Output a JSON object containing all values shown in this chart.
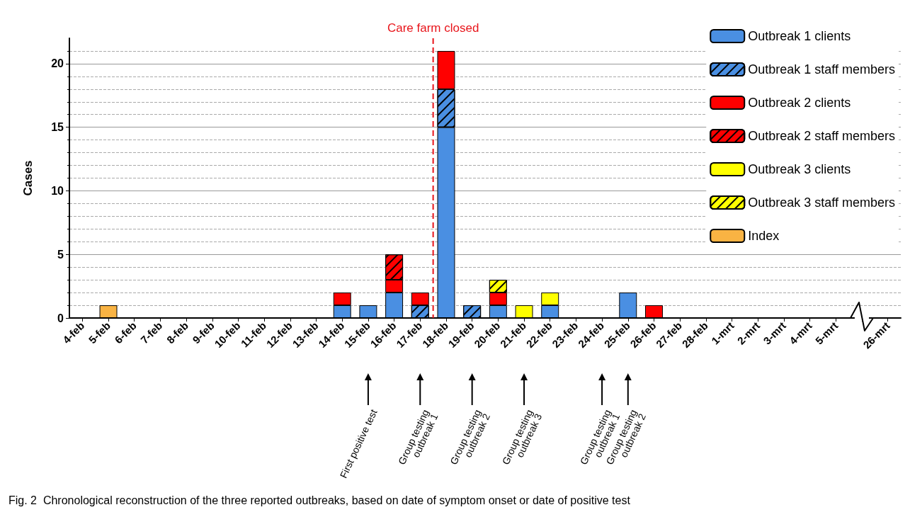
{
  "chart_data": {
    "type": "bar",
    "stacked": true,
    "ylabel": "Cases",
    "categories": [
      "4-feb",
      "5-feb",
      "6-feb",
      "7-feb",
      "8-feb",
      "9-feb",
      "10-feb",
      "11-feb",
      "12-feb",
      "13-feb",
      "14-feb",
      "15-feb",
      "16-feb",
      "17-feb",
      "18-feb",
      "19-feb",
      "20-feb",
      "21-feb",
      "22-feb",
      "23-feb",
      "24-feb",
      "25-feb",
      "26-feb",
      "27-feb",
      "28-feb",
      "1-mrt",
      "2-mrt",
      "3-mrt",
      "4-mrt",
      "5-mrt",
      null,
      "26-mrt"
    ],
    "series": [
      {
        "name": "Outbreak 1 clients",
        "color": "#4a8fe2",
        "values": [
          null,
          null,
          null,
          null,
          null,
          null,
          null,
          null,
          null,
          null,
          1,
          1,
          2,
          null,
          15,
          null,
          1,
          null,
          1,
          null,
          null,
          2,
          null,
          null,
          null,
          null,
          null,
          null,
          null,
          null,
          null,
          null
        ]
      },
      {
        "name": "Outbreak 1 staff members",
        "color": "#4a8fe2",
        "values": [
          null,
          null,
          null,
          null,
          null,
          null,
          null,
          null,
          null,
          null,
          null,
          null,
          null,
          1,
          3,
          1,
          null,
          null,
          null,
          null,
          null,
          null,
          null,
          null,
          null,
          null,
          null,
          null,
          null,
          null,
          null,
          null
        ]
      },
      {
        "name": "Outbreak 2 clients",
        "color": "#ff0000",
        "values": [
          null,
          null,
          null,
          null,
          null,
          null,
          null,
          null,
          null,
          null,
          1,
          null,
          1,
          1,
          3,
          null,
          1,
          null,
          null,
          null,
          null,
          null,
          1,
          null,
          null,
          null,
          null,
          null,
          null,
          null,
          null,
          null
        ]
      },
      {
        "name": "Outbreak 2 staff members",
        "color": "#ff0000",
        "values": [
          null,
          null,
          null,
          null,
          null,
          null,
          null,
          null,
          null,
          null,
          null,
          null,
          2,
          null,
          null,
          null,
          null,
          null,
          null,
          null,
          null,
          null,
          null,
          null,
          null,
          null,
          null,
          null,
          null,
          null,
          null,
          null
        ]
      },
      {
        "name": "Outbreak 3 clients",
        "color": "#ffff00",
        "values": [
          null,
          null,
          null,
          null,
          null,
          null,
          null,
          null,
          null,
          null,
          null,
          null,
          null,
          null,
          null,
          null,
          null,
          1,
          1,
          null,
          null,
          null,
          null,
          null,
          null,
          null,
          null,
          null,
          null,
          null,
          null,
          null
        ]
      },
      {
        "name": "Outbreak 3 staff members",
        "color": "#ffff00",
        "values": [
          null,
          null,
          null,
          null,
          null,
          null,
          null,
          null,
          null,
          null,
          null,
          null,
          null,
          null,
          null,
          null,
          1,
          null,
          null,
          null,
          null,
          null,
          null,
          null,
          null,
          null,
          null,
          null,
          null,
          null,
          null,
          null
        ]
      },
      {
        "name": "Index",
        "color": "#f9b343",
        "values": [
          null,
          1,
          null,
          null,
          null,
          null,
          null,
          null,
          null,
          null,
          null,
          null,
          null,
          null,
          null,
          null,
          null,
          null,
          null,
          null,
          null,
          null,
          null,
          null,
          null,
          null,
          null,
          null,
          null,
          null,
          null,
          null
        ]
      }
    ],
    "ylim": [
      0,
      22
    ],
    "yticks": [
      0,
      5,
      10,
      15,
      20
    ],
    "grid": "y",
    "legend": "top right",
    "ref_lines": [
      {
        "axis": "x",
        "value": "18-feb",
        "label": "Care farm closed",
        "color": "#e8141a",
        "line_style": "dashed"
      }
    ],
    "annotations": [
      "First positive test",
      "Group testing\noutbreak 1",
      "Group testing\noutbreak 2",
      "Group testing\noutbreak 3",
      "Group testing\noutbreak 1",
      "Group testing\noutbreak 2",
      "Fig. 2  Chronological reconstruction of the three reported outbreaks, based on date of symptom onset or date of positive test"
    ]
  }
}
